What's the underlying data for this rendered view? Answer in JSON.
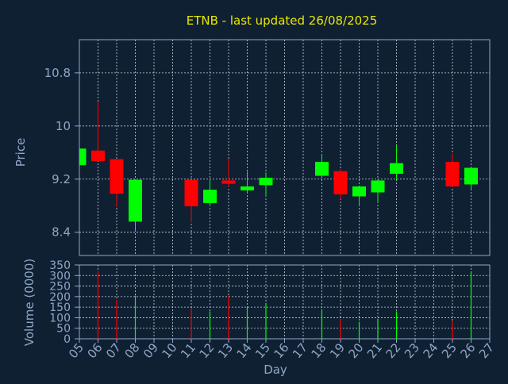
{
  "chart_data": [
    {
      "type": "candlestick",
      "title": "ETNB - last updated 26/08/2025",
      "ylabel": "Price",
      "yticks": [
        "8.4",
        "9.2",
        "10",
        "10.8"
      ],
      "ylim": [
        8.05,
        11.3
      ],
      "categories": [
        "05",
        "06",
        "07",
        "08",
        "09",
        "10",
        "11",
        "12",
        "13",
        "14",
        "15",
        "16",
        "17",
        "18",
        "19",
        "20",
        "21",
        "22",
        "23",
        "24",
        "25",
        "26",
        "27"
      ],
      "candles": [
        {
          "day": "05",
          "open": 9.41,
          "high": 9.66,
          "low": 9.41,
          "close": 9.66
        },
        {
          "day": "06",
          "open": 9.63,
          "high": 10.37,
          "low": 9.47,
          "close": 9.47
        },
        {
          "day": "07",
          "open": 9.5,
          "high": 9.5,
          "low": 8.78,
          "close": 8.98
        },
        {
          "day": "08",
          "open": 8.56,
          "high": 9.19,
          "low": 8.41,
          "close": 9.19
        },
        {
          "day": "11",
          "open": 9.19,
          "high": 9.19,
          "low": 8.55,
          "close": 8.79
        },
        {
          "day": "12",
          "open": 8.84,
          "high": 9.19,
          "low": 8.79,
          "close": 9.04
        },
        {
          "day": "13",
          "open": 9.18,
          "high": 9.51,
          "low": 9.08,
          "close": 9.13
        },
        {
          "day": "14",
          "open": 9.03,
          "high": 9.31,
          "low": 8.99,
          "close": 9.09
        },
        {
          "day": "15",
          "open": 9.11,
          "high": 9.3,
          "low": 8.94,
          "close": 9.22
        },
        {
          "day": "18",
          "open": 9.25,
          "high": 9.57,
          "low": 9.23,
          "close": 9.46
        },
        {
          "day": "19",
          "open": 9.32,
          "high": 9.35,
          "low": 8.9,
          "close": 8.97
        },
        {
          "day": "20",
          "open": 8.94,
          "high": 9.09,
          "low": 8.79,
          "close": 9.09
        },
        {
          "day": "21",
          "open": 9.0,
          "high": 9.18,
          "low": 8.84,
          "close": 9.18
        },
        {
          "day": "22",
          "open": 9.28,
          "high": 9.7,
          "low": 9.2,
          "close": 9.44
        },
        {
          "day": "25",
          "open": 9.46,
          "high": 9.58,
          "low": 9.08,
          "close": 9.09
        },
        {
          "day": "26",
          "open": 9.12,
          "high": 9.37,
          "low": 9.04,
          "close": 9.37
        }
      ]
    },
    {
      "type": "bar",
      "xlabel": "Day",
      "ylabel": "Volume (0000)",
      "ylim": [
        0,
        350
      ],
      "yticks": [
        "0",
        "50",
        "100",
        "150",
        "200",
        "250",
        "300",
        "350"
      ],
      "categories": [
        "05",
        "06",
        "07",
        "08",
        "09",
        "10",
        "11",
        "12",
        "13",
        "14",
        "15",
        "16",
        "17",
        "18",
        "19",
        "20",
        "21",
        "22",
        "23",
        "24",
        "25",
        "26",
        "27"
      ],
      "values": [
        {
          "day": "06",
          "value": 320,
          "direction": "down"
        },
        {
          "day": "07",
          "value": 185,
          "direction": "down"
        },
        {
          "day": "08",
          "value": 205,
          "direction": "up"
        },
        {
          "day": "11",
          "value": 145,
          "direction": "down"
        },
        {
          "day": "12",
          "value": 130,
          "direction": "up"
        },
        {
          "day": "13",
          "value": 205,
          "direction": "down"
        },
        {
          "day": "14",
          "value": 150,
          "direction": "up"
        },
        {
          "day": "15",
          "value": 170,
          "direction": "up"
        },
        {
          "day": "18",
          "value": 140,
          "direction": "up"
        },
        {
          "day": "19",
          "value": 95,
          "direction": "down"
        },
        {
          "day": "20",
          "value": 80,
          "direction": "up"
        },
        {
          "day": "21",
          "value": 95,
          "direction": "up"
        },
        {
          "day": "22",
          "value": 130,
          "direction": "up"
        },
        {
          "day": "25",
          "value": 85,
          "direction": "down"
        },
        {
          "day": "26",
          "value": 320,
          "direction": "up"
        }
      ]
    }
  ],
  "colors": {
    "background": "#0f2033",
    "axis": "#8fa7c4",
    "text": "#8fa7c4",
    "title": "#e8e800",
    "grid": "#c8d2dc",
    "up": "#00ff00",
    "down": "#ff0000"
  }
}
